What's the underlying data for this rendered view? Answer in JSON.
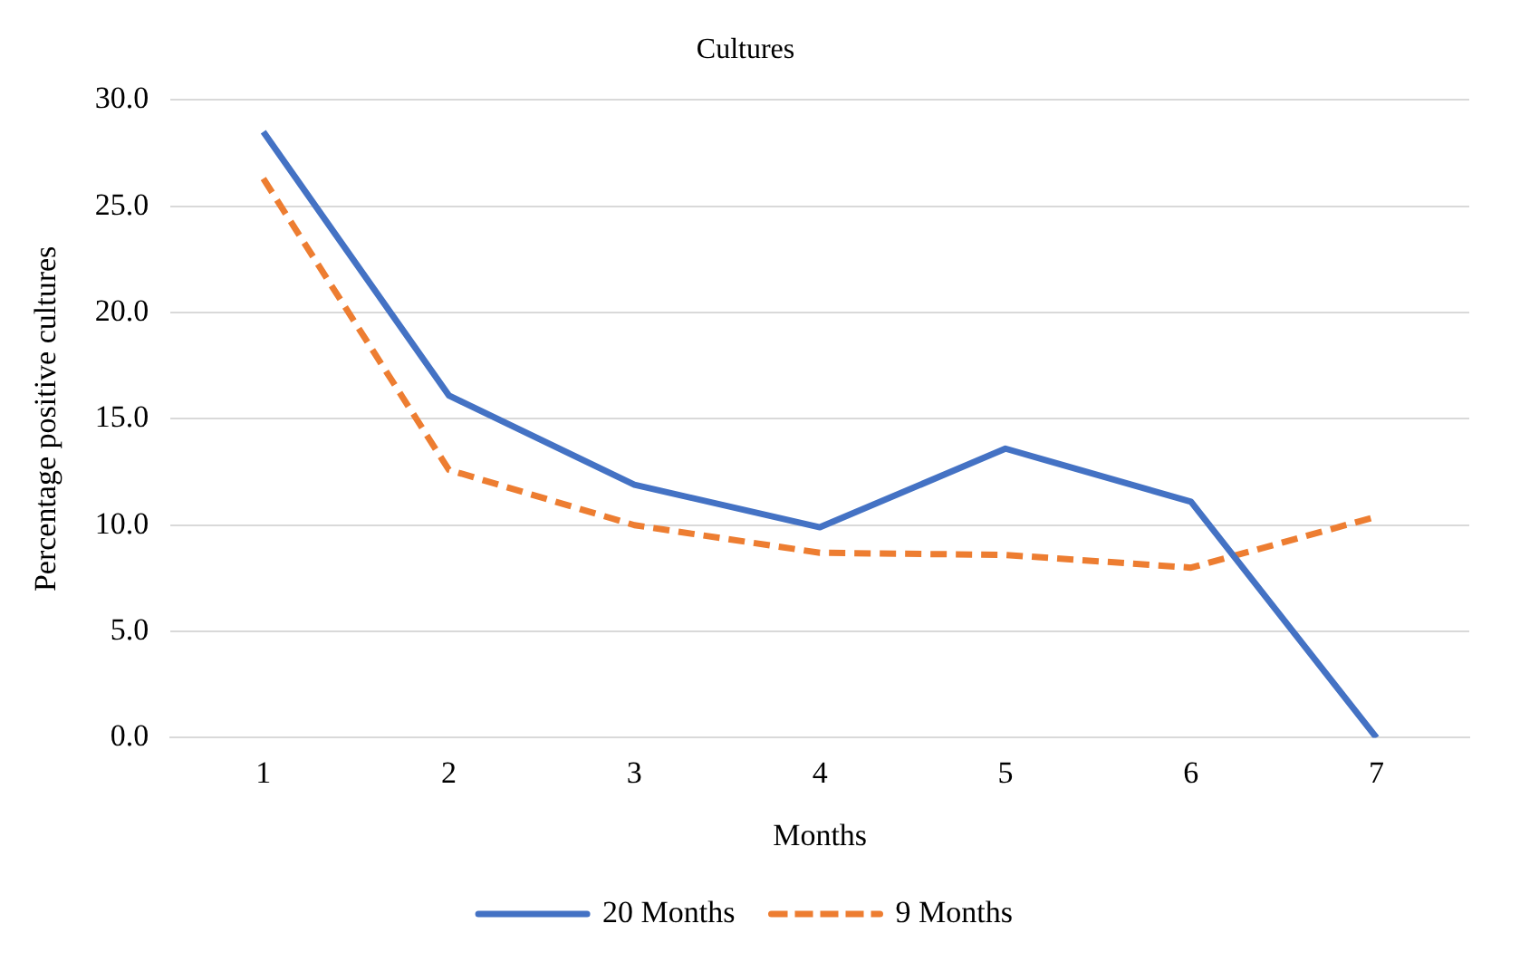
{
  "chart_data": {
    "type": "line",
    "title": "Cultures",
    "xlabel": "Months",
    "ylabel": "Percentage positive cultures",
    "categories": [
      "1",
      "2",
      "3",
      "4",
      "5",
      "6",
      "7"
    ],
    "series": [
      {
        "name": "20 Months",
        "color": "#4472c4",
        "line_style": "solid",
        "values": [
          28.5,
          16.1,
          11.9,
          9.9,
          13.6,
          11.1,
          0
        ]
      },
      {
        "name": "9 Months",
        "color": "#ed7d31",
        "line_style": "dashed",
        "values": [
          26.3,
          12.6,
          10.0,
          8.7,
          8.6,
          8.0,
          10.4
        ]
      }
    ],
    "ylim": [
      0,
      30
    ],
    "yticks": [
      {
        "value": 0,
        "label": "0.0"
      },
      {
        "value": 5,
        "label": "5.0"
      },
      {
        "value": 10,
        "label": "10.0"
      },
      {
        "value": 15,
        "label": "15.0"
      },
      {
        "value": 20,
        "label": "20.0"
      },
      {
        "value": 25,
        "label": "25.0"
      },
      {
        "value": 30,
        "label": "30.0"
      }
    ],
    "grid": "y",
    "legend": "bottom",
    "marker": "none"
  }
}
